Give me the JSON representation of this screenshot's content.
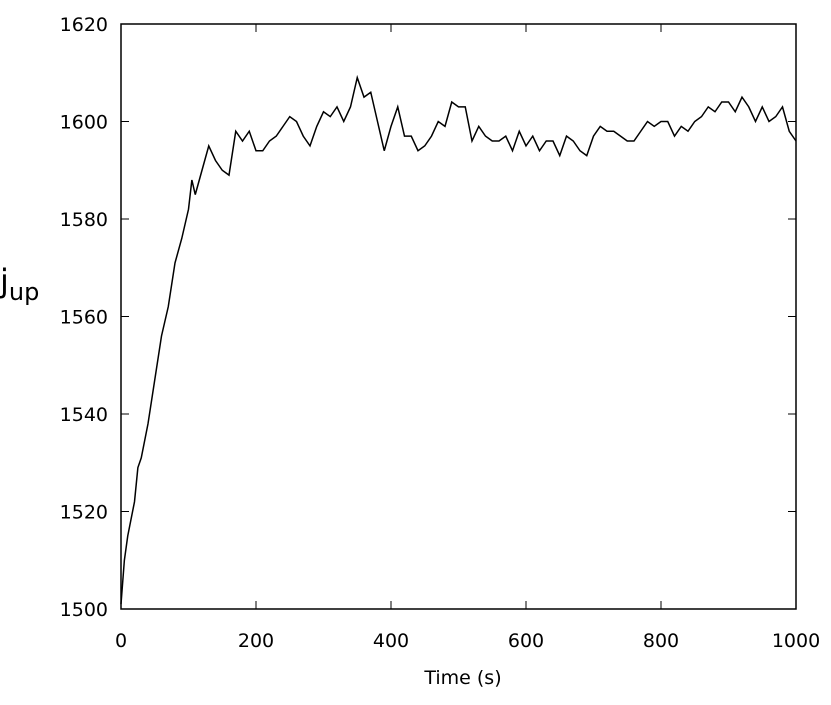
{
  "chart_data": {
    "type": "line",
    "x_label": "Time (s)",
    "y_label": "j",
    "y_label_sub": "up",
    "x": [
      0,
      5,
      10,
      20,
      25,
      30,
      40,
      50,
      60,
      70,
      80,
      90,
      100,
      105,
      110,
      120,
      130,
      140,
      150,
      160,
      170,
      180,
      190,
      200,
      210,
      220,
      230,
      240,
      250,
      260,
      270,
      280,
      290,
      300,
      310,
      320,
      330,
      340,
      350,
      360,
      370,
      380,
      390,
      400,
      410,
      420,
      430,
      440,
      450,
      460,
      470,
      480,
      490,
      500,
      510,
      520,
      530,
      540,
      550,
      560,
      570,
      580,
      590,
      600,
      610,
      620,
      630,
      640,
      650,
      660,
      670,
      680,
      690,
      700,
      710,
      720,
      730,
      740,
      750,
      760,
      770,
      780,
      790,
      800,
      810,
      820,
      830,
      840,
      850,
      860,
      870,
      880,
      890,
      900,
      910,
      920,
      930,
      940,
      950,
      960,
      970,
      980,
      990,
      1000
    ],
    "series": [
      {
        "color": "#000000",
        "values": [
          1501,
          1510,
          1515,
          1522,
          1529,
          1531,
          1538,
          1547,
          1556,
          1562,
          1571,
          1576,
          1582,
          1588,
          1585,
          1590,
          1595,
          1592,
          1590,
          1589,
          1598,
          1596,
          1598,
          1594,
          1594,
          1596,
          1597,
          1599,
          1601,
          1600,
          1597,
          1595,
          1599,
          1602,
          1601,
          1603,
          1600,
          1603,
          1609,
          1605,
          1606,
          1600,
          1594,
          1599,
          1603,
          1597,
          1597,
          1594,
          1595,
          1597,
          1600,
          1599,
          1604,
          1603,
          1603,
          1596,
          1599,
          1597,
          1596,
          1596,
          1597,
          1594,
          1598,
          1595,
          1597,
          1594,
          1596,
          1596,
          1593,
          1597,
          1596,
          1594,
          1593,
          1597,
          1599,
          1598,
          1598,
          1597,
          1596,
          1596,
          1598,
          1600,
          1599,
          1600,
          1600,
          1597,
          1599,
          1598,
          1600,
          1601,
          1603,
          1602,
          1604,
          1604,
          1602,
          1605,
          1603,
          1600,
          1603,
          1600,
          1601,
          1603,
          1598,
          1596
        ]
      }
    ],
    "xlim": [
      0,
      1000
    ],
    "xticks": [
      0,
      200,
      400,
      600,
      800,
      1000
    ],
    "ylim": [
      1500,
      1620
    ],
    "yticks": [
      1500,
      1520,
      1540,
      1560,
      1580,
      1600,
      1620
    ]
  }
}
